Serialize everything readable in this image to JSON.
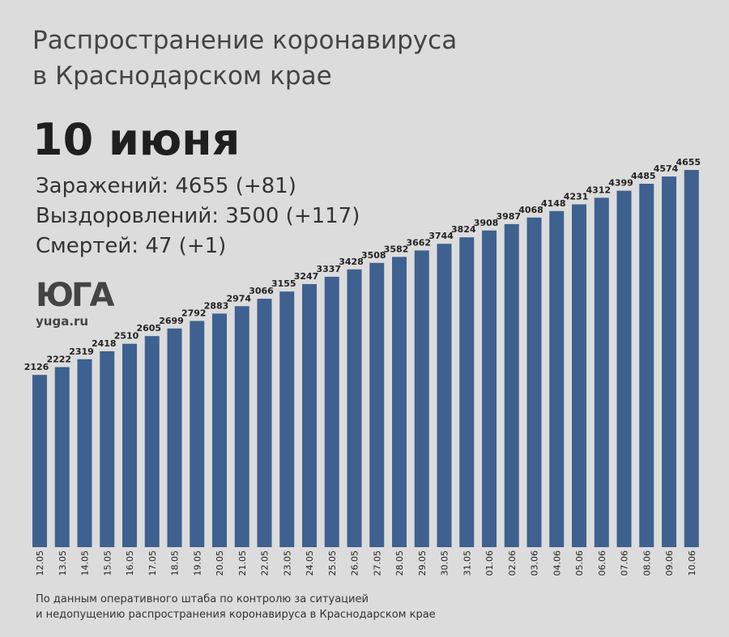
{
  "header": {
    "title_line1": "Распространение коронавируса",
    "title_line2": "в Краснодарском крае",
    "date": "10 июня"
  },
  "stats": {
    "infected": "Заражений: 4655 (+81)",
    "recovered": "Выздоровлений: 3500 (+117)",
    "deaths": "Смертей: 47 (+1)"
  },
  "logo": {
    "mark": "ЮГА",
    "site": "yuga.ru"
  },
  "source": {
    "line1": "По данным оперативного штаба по контролю за ситуацией",
    "line2": "и недопущению распространения коронавируса в Краснодарском крае"
  },
  "colors": {
    "bar": "#3f6190",
    "background": "#dcdcdc"
  },
  "chart_data": {
    "type": "bar",
    "title": "",
    "xlabel": "",
    "ylabel": "",
    "categories": [
      "12.05",
      "13.05",
      "14.05",
      "15.05",
      "16.05",
      "17.05",
      "18.05",
      "19.05",
      "20.05",
      "21.05",
      "22.05",
      "23.05",
      "24.05",
      "25.05",
      "26.05",
      "27.05",
      "28.05",
      "29.05",
      "30.05",
      "31.05",
      "01.06",
      "02.06",
      "03.06",
      "04.06",
      "05.06",
      "06.06",
      "07.06",
      "08.06",
      "09.06",
      "10.06"
    ],
    "values": [
      2126,
      2222,
      2319,
      2418,
      2510,
      2605,
      2699,
      2792,
      2883,
      2974,
      3066,
      3155,
      3247,
      3337,
      3428,
      3508,
      3582,
      3662,
      3744,
      3824,
      3908,
      3987,
      4068,
      4148,
      4231,
      4312,
      4399,
      4485,
      4574,
      4655
    ],
    "ylim": [
      0,
      4655
    ],
    "data_labels": true,
    "grid": false,
    "legend": "none"
  }
}
